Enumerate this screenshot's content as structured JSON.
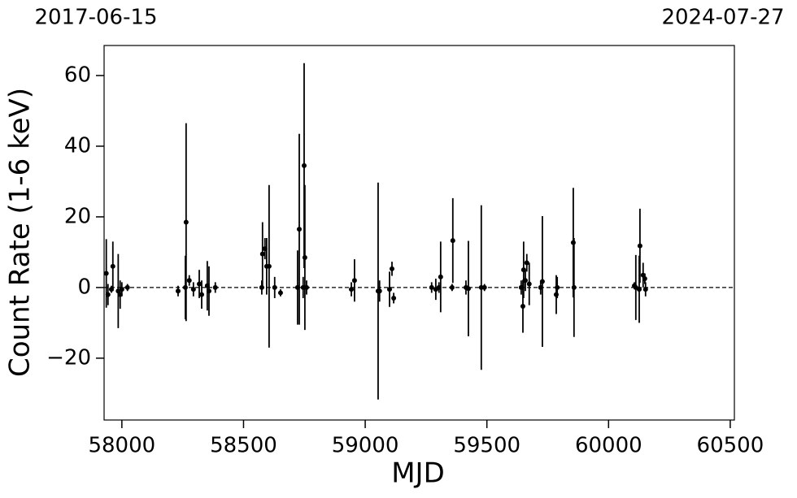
{
  "chart_data": {
    "type": "errorbar-scatter",
    "x_label": "MJD",
    "y_label": "Count Rate (1-6 keV)",
    "top_labels": [
      "2017-06-15",
      "2024-07-27"
    ],
    "color": "#000000",
    "hline": 0,
    "xlim": [
      57927,
      60517
    ],
    "ylim": [
      -37.5,
      68.5
    ],
    "xticks": [
      58000,
      58500,
      59000,
      59500,
      60000,
      60500
    ],
    "yticks": [
      {
        "value": -20,
        "label": "−20"
      },
      0,
      20,
      40,
      60
    ],
    "series": [
      {
        "name": "Count Rate",
        "x": [
          57936,
          57943,
          57957,
          57963,
          57985,
          57993,
          58000,
          58023,
          58231,
          58261,
          58264,
          58277,
          58294,
          58318,
          58328,
          58351,
          58358,
          58384,
          58575,
          58578,
          58588,
          58595,
          58605,
          58628,
          58652,
          58722,
          58729,
          58745,
          58749,
          58752,
          58759,
          58943,
          58956,
          59053,
          59059,
          59100,
          59110,
          59117,
          59273,
          59290,
          59303,
          59310,
          59357,
          59360,
          59414,
          59424,
          59477,
          59490,
          59641,
          59648,
          59651,
          59658,
          59664,
          59674,
          59721,
          59728,
          59785,
          59789,
          59855,
          59858,
          60106,
          60112,
          60126,
          60129,
          60142,
          60149,
          60152
        ],
        "values": [
          4,
          -2,
          -0.5,
          6,
          -1,
          -2,
          -0.5,
          0,
          -1,
          0,
          18.5,
          2,
          -0.5,
          1,
          -2,
          0.5,
          -1,
          0,
          0,
          9.5,
          11,
          6,
          6,
          0,
          -1.5,
          0,
          16.5,
          0,
          34.5,
          8.5,
          0,
          -0.5,
          2,
          -1,
          -1,
          -0.5,
          5.3,
          -3,
          0,
          -0.5,
          0,
          3,
          0,
          13.3,
          0,
          -0.3,
          0,
          0,
          0,
          -5.3,
          5,
          2,
          7,
          1,
          0,
          1.7,
          -2,
          0,
          12.7,
          0,
          0.5,
          0,
          -0.5,
          11.8,
          3.5,
          2.5,
          -0.5
        ],
        "errors": [
          9.7,
          3,
          1,
          7,
          10.5,
          4,
          2,
          1,
          1.5,
          9,
          28,
          1.5,
          2,
          4,
          4,
          7,
          7,
          1.5,
          2,
          9,
          3,
          8,
          23,
          3,
          1,
          10.5,
          27,
          3,
          29,
          20.5,
          2,
          2,
          6,
          30.7,
          3,
          5,
          2,
          1.5,
          1.5,
          3,
          1.5,
          10,
          1,
          12,
          2,
          13.5,
          23.3,
          1,
          2,
          7.5,
          8,
          3,
          2.5,
          6,
          2,
          18.5,
          5.5,
          3,
          15.5,
          14,
          1,
          9.2,
          9.5,
          10.5,
          3.5,
          1.5,
          2
        ]
      }
    ]
  }
}
